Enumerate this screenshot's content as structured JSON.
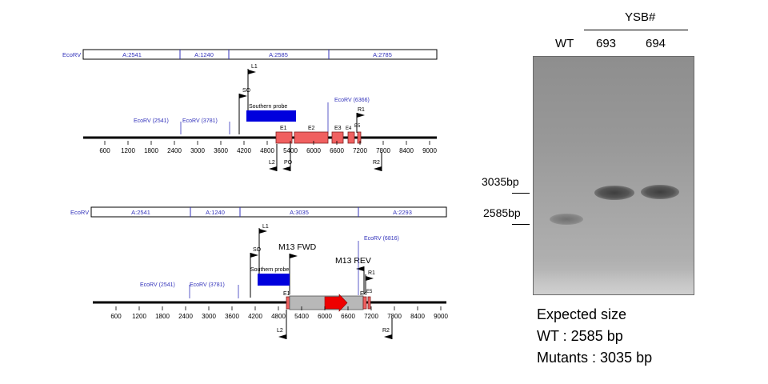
{
  "top_map": {
    "segments": [
      {
        "label": "EcoRV"
      },
      {
        "label": "A:2541"
      },
      {
        "label": "A:1240"
      },
      {
        "label": "A:2585"
      },
      {
        "label": "A:2785"
      }
    ],
    "sites": {
      "ecorv_2541": "EcoRV (2541)",
      "ecorv_3781": "EcoRV (3781)",
      "ecorv_6366": "EcoRV (6366)"
    },
    "primers": {
      "l1": "L1",
      "so": "SO",
      "r1": "R1",
      "l2": "L2",
      "po": "PO",
      "r2": "R2"
    },
    "probe": "Southern probe",
    "exons": [
      "E1",
      "E2",
      "E3",
      "E4",
      "E5"
    ],
    "ticks": [
      "600",
      "1200",
      "1800",
      "2400",
      "3000",
      "3600",
      "4200",
      "4800",
      "5400",
      "6000",
      "6600",
      "7200",
      "7800",
      "8400",
      "9000"
    ]
  },
  "bottom_map": {
    "segments": [
      {
        "label": "EcoRV"
      },
      {
        "label": "A:2541"
      },
      {
        "label": "A:1240"
      },
      {
        "label": "A:3035"
      },
      {
        "label": "A:2293"
      }
    ],
    "sites": {
      "ecorv_2541": "EcoRV (2541)",
      "ecorv_3781": "EcoRV (3781)",
      "ecorv_6816": "EcoRV (6816)"
    },
    "primers": {
      "l1": "L1",
      "so": "SO",
      "m13fwd": "M13 FWD",
      "m13rev": "M13 REV",
      "r1": "R1",
      "l2": "L2",
      "r2": "R2"
    },
    "probe": "Southern probe",
    "exons": [
      "E1",
      "E4",
      "E5"
    ],
    "ticks": [
      "600",
      "1200",
      "1800",
      "2400",
      "3000",
      "3600",
      "4200",
      "4800",
      "5400",
      "6000",
      "6600",
      "7200",
      "7800",
      "8400",
      "9000"
    ]
  },
  "blot": {
    "group_label": "YSB#",
    "lanes": [
      "WT",
      "693",
      "694"
    ],
    "markers": [
      "3035bp",
      "2585bp"
    ]
  },
  "expected": {
    "title": "Expected size",
    "wt": "WT : 2585 bp",
    "mutants": "Mutants : 3035 bp"
  },
  "colors": {
    "exon": "#f06060",
    "probe": "#0000dd",
    "site_text": "#3333bb",
    "insert": "#b8b8b8",
    "arrow": "#ee0000"
  }
}
